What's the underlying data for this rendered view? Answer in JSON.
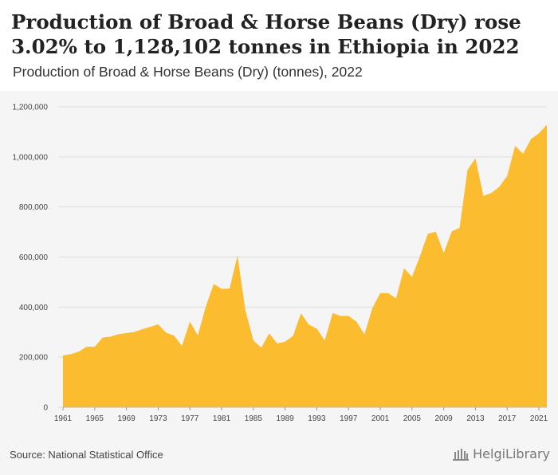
{
  "header": {
    "title": "Production of Broad & Horse Beans (Dry) rose 3.02% to 1,128,102 tonnes in Ethiopia in 2022",
    "subtitle": "Production of Broad & Horse Beans (Dry) (tonnes), 2022"
  },
  "footer": {
    "source": "Source: National Statistical Office",
    "logo_text": "HelgiLibrary"
  },
  "colors": {
    "area_fill": "#fbbc2f",
    "grid": "#dddddd",
    "background": "#f5f5f5"
  },
  "chart_data": {
    "type": "area",
    "title": "Production of Broad & Horse Beans (Dry) (tonnes), 2022",
    "x": [
      1961,
      1962,
      1963,
      1964,
      1965,
      1966,
      1967,
      1968,
      1969,
      1970,
      1971,
      1972,
      1973,
      1974,
      1975,
      1976,
      1977,
      1978,
      1979,
      1980,
      1981,
      1982,
      1983,
      1984,
      1985,
      1986,
      1987,
      1988,
      1989,
      1990,
      1991,
      1992,
      1993,
      1994,
      1995,
      1996,
      1997,
      1998,
      1999,
      2000,
      2001,
      2002,
      2003,
      2004,
      2005,
      2006,
      2007,
      2008,
      2009,
      2010,
      2011,
      2012,
      2013,
      2014,
      2015,
      2016,
      2017,
      2018,
      2019,
      2020,
      2021,
      2022
    ],
    "series": [
      {
        "values": [
          207000,
          212000,
          222000,
          242000,
          242000,
          278000,
          282000,
          292000,
          296000,
          301000,
          312000,
          321000,
          331000,
          298000,
          286000,
          245000,
          342000,
          287000,
          402000,
          492000,
          473000,
          474000,
          606000,
          387000,
          267000,
          238000,
          295000,
          255000,
          262000,
          285000,
          375000,
          330000,
          314000,
          267000,
          376000,
          365000,
          365000,
          342000,
          291000,
          396000,
          456000,
          456000,
          435000,
          555000,
          521000,
          603000,
          693000,
          701000,
          616000,
          702000,
          717000,
          948000,
          994000,
          844000,
          856000,
          880000,
          924000,
          1044000,
          1012000,
          1071000,
          1094000,
          1128102
        ]
      }
    ],
    "xticks": [
      "1961",
      "1965",
      "1969",
      "1973",
      "1977",
      "1981",
      "1985",
      "1989",
      "1993",
      "1997",
      "2001",
      "2005",
      "2009",
      "2013",
      "2017",
      "2021"
    ],
    "yticks": [
      "0",
      "200,000",
      "400,000",
      "600,000",
      "800,000",
      "1,000,000",
      "1,200,000"
    ],
    "ylim": [
      0,
      1200000
    ],
    "grid": true,
    "legend": "none"
  }
}
